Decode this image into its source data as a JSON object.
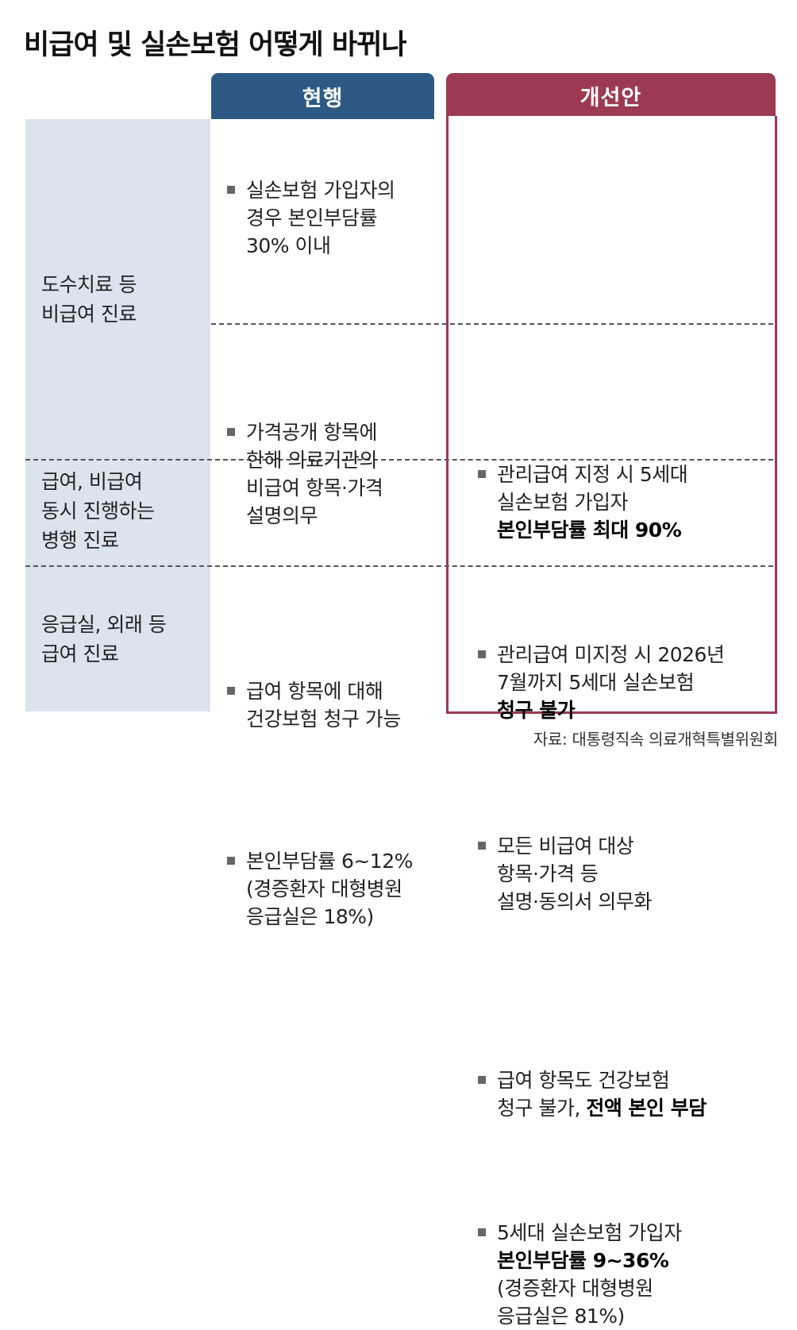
{
  "title": "비급여 및 실손보험 어떻게 바뀌나",
  "headers": {
    "current": "현행",
    "proposed": "개선안"
  },
  "categories": [
    {
      "lines": [
        "도수치료 등",
        "비급여 진료"
      ]
    },
    {
      "lines": [
        "급여, 비급여",
        "동시 진행하는",
        "병행 진료"
      ]
    },
    {
      "lines": [
        "응급실, 외래 등",
        "급여 진료"
      ]
    }
  ],
  "current": [
    {
      "lines": [
        "실손보험 가입자의",
        "경우 본인부담률",
        "30% 이내"
      ]
    },
    {
      "lines": [
        "가격공개 항목에",
        "한해 의료기관의",
        "비급여 항목·가격",
        "설명의무"
      ]
    },
    {
      "lines": [
        "급여 항목에 대해",
        "건강보험 청구 가능"
      ]
    },
    {
      "lines": [
        "본인부담률 6~12%",
        "(경증환자 대형병원",
        "응급실은 18%)"
      ]
    }
  ],
  "proposed": [
    {
      "lines": [
        "관리급여 지정 시 5세대",
        "실손보험 가입자"
      ],
      "bold": "본인부담률 최대 90%"
    },
    {
      "lines": [
        "관리급여 미지정 시 2026년",
        "7월까지 5세대 실손보험"
      ],
      "bold": "청구 불가"
    },
    {
      "lines": [
        "모든 비급여 대상",
        "항목·가격 등",
        "설명·동의서 의무화"
      ]
    },
    {
      "line1": "급여 항목도 건강보험",
      "line2_plain": "청구 불가, ",
      "line2_bold": "전액 본인 부담"
    },
    {
      "line1": "5세대 실손보험 가입자",
      "bold": "본인부담률 9~36%",
      "lines": [
        "(경증환자 대형병원",
        "응급실은 81%)"
      ]
    }
  ],
  "source": "자료: 대통령직속 의료개혁특별위원회",
  "colors": {
    "current_header": "#2d5a85",
    "proposed_header": "#9b3a50",
    "category_bg": "#dbe3ef"
  }
}
